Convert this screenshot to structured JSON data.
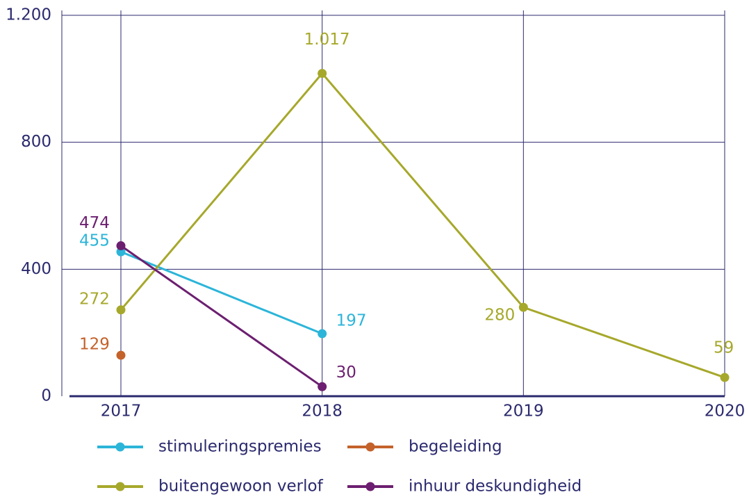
{
  "chart_data": {
    "type": "line",
    "categories": [
      "2017",
      "2018",
      "2019",
      "2020"
    ],
    "series": [
      {
        "name": "stimuleringspremies",
        "color": "#2cb5d9",
        "values": [
          455,
          197,
          null,
          null
        ]
      },
      {
        "name": "begeleiding",
        "color": "#c4622b",
        "values": [
          129,
          null,
          null,
          null
        ]
      },
      {
        "name": "buitengewoon verlof",
        "color": "#a6a82b",
        "values": [
          272,
          1017,
          280,
          59
        ],
        "value_labels": [
          "272",
          "1.017",
          "280",
          "59"
        ]
      },
      {
        "name": "inhuur deskundigheid",
        "color": "#6c1f70",
        "values": [
          474,
          30,
          null,
          null
        ]
      }
    ],
    "ylim": [
      0,
      1200
    ],
    "yticks": [
      0,
      400,
      800,
      {
        "value": 1200,
        "label": "1.200"
      }
    ],
    "grid": true
  }
}
